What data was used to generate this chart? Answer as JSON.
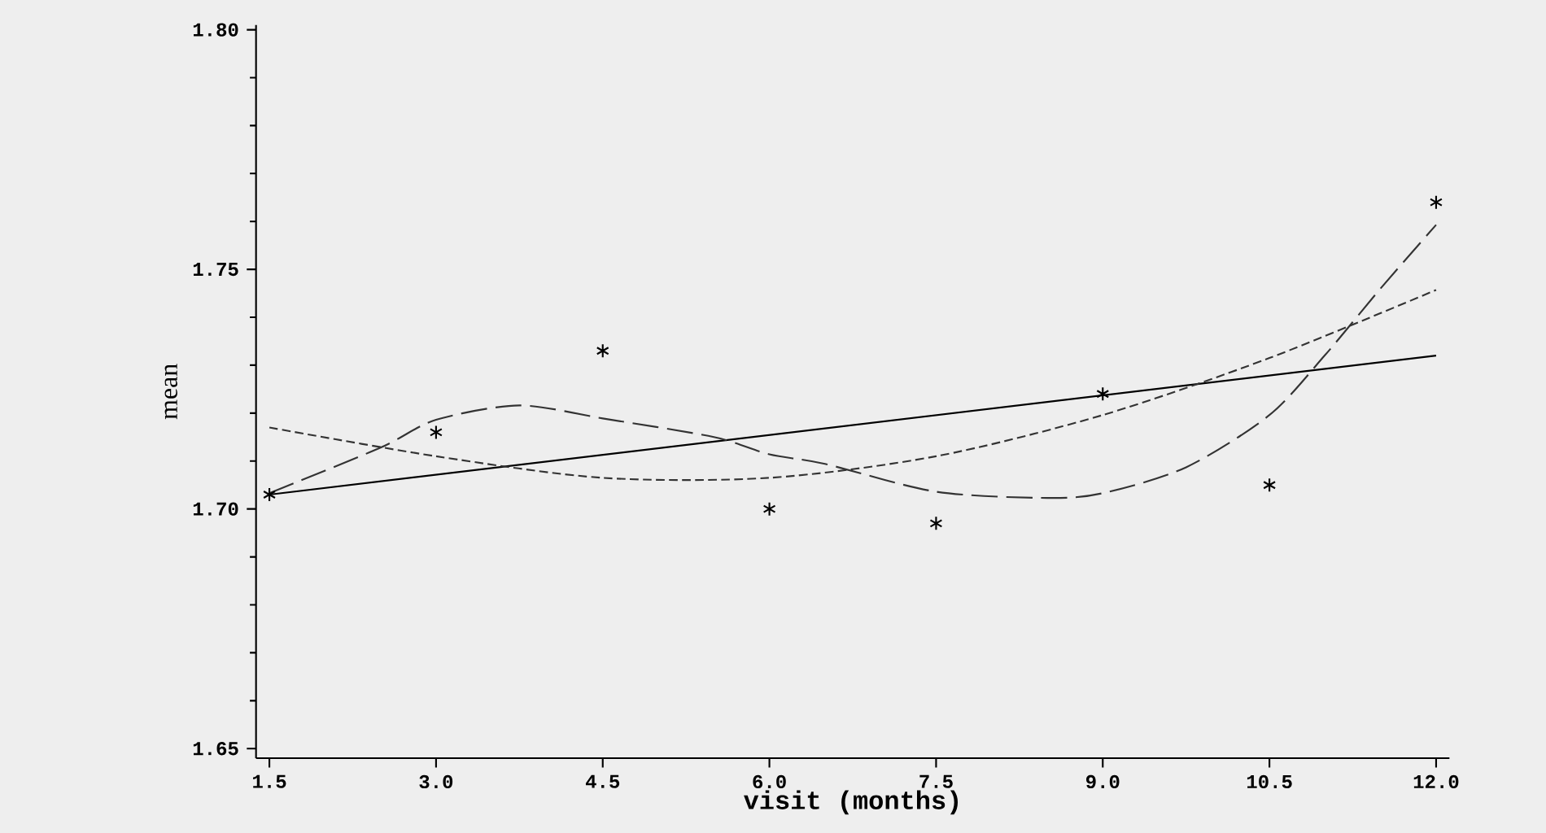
{
  "chart_data": {
    "type": "scatter",
    "xlabel": "visit (months)",
    "ylabel": "mean",
    "x": [
      1.5,
      3.0,
      4.5,
      6.0,
      7.5,
      9.0,
      10.5,
      12.0
    ],
    "xlim": [
      1.38,
      12.12
    ],
    "ylim": [
      1.648,
      1.801
    ],
    "xticks": [
      {
        "value": 1.5,
        "label": "1.5"
      },
      {
        "value": 3.0,
        "label": "3.0"
      },
      {
        "value": 4.5,
        "label": "4.5"
      },
      {
        "value": 6.0,
        "label": "6.0"
      },
      {
        "value": 7.5,
        "label": "7.5"
      },
      {
        "value": 9.0,
        "label": "9.0"
      },
      {
        "value": 10.5,
        "label": "10.5"
      },
      {
        "value": 12.0,
        "label": "12.0"
      }
    ],
    "yticks": [
      {
        "value": 1.65,
        "label": "1.65"
      },
      {
        "value": 1.7,
        "label": "1.70"
      },
      {
        "value": 1.75,
        "label": "1.75"
      },
      {
        "value": 1.8,
        "label": "1.80"
      }
    ],
    "grid": false,
    "marker": "cross",
    "series": [
      {
        "color": "#000000",
        "values": [
          1.703,
          1.716,
          1.733,
          1.7,
          1.697,
          1.724,
          1.705,
          1.764
        ]
      },
      {
        "type": "line",
        "color": "#000000",
        "line_style": "solid",
        "marker": "none",
        "x": [
          1.5,
          12.0
        ],
        "values": [
          1.703,
          1.732
        ]
      },
      {
        "type": "line",
        "color": "#333333",
        "line_style": "dashed",
        "marker": "none",
        "x": [
          1.5,
          3.0,
          4.5,
          6.0,
          7.5,
          9.0,
          10.5,
          12.0
        ],
        "values": [
          1.717,
          1.711,
          1.7065,
          1.7065,
          1.711,
          1.7196,
          1.7315,
          1.7457
        ]
      },
      {
        "type": "line",
        "color": "#333333",
        "line_style": "dashed",
        "marker": "none",
        "x": [
          1.5,
          2.5,
          3.0,
          3.75,
          4.5,
          5.5,
          6.0,
          6.5,
          7.5,
          8.5,
          9.0,
          9.75,
          10.5,
          11.0,
          11.5,
          12.0
        ],
        "values": [
          1.7033,
          1.7128,
          1.7186,
          1.7216,
          1.7189,
          1.715,
          1.7114,
          1.7094,
          1.7036,
          1.7023,
          1.7033,
          1.7087,
          1.7196,
          1.7321,
          1.746,
          1.7593
        ]
      }
    ]
  }
}
